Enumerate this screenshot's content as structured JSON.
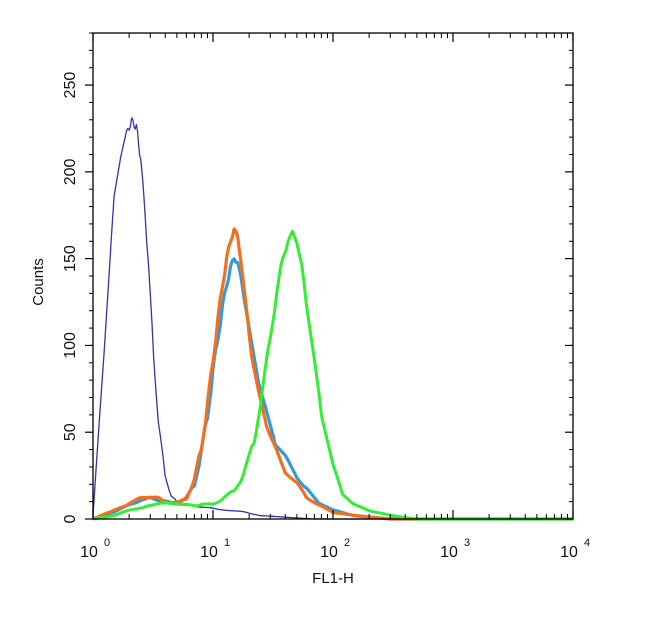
{
  "chart_data": {
    "type": "line",
    "title": "",
    "xlabel": "FL1-H",
    "ylabel": "Counts",
    "x_scale": "log",
    "xlim": [
      1,
      10000
    ],
    "ylim": [
      0,
      280
    ],
    "x_ticks": [
      {
        "value": 1,
        "base": "10",
        "exp": "0"
      },
      {
        "value": 10,
        "base": "10",
        "exp": "1"
      },
      {
        "value": 100,
        "base": "10",
        "exp": "2"
      },
      {
        "value": 1000,
        "base": "10",
        "exp": "3"
      },
      {
        "value": 10000,
        "base": "10",
        "exp": "4"
      }
    ],
    "y_ticks": [
      {
        "value": 0,
        "label": "0"
      },
      {
        "value": 50,
        "label": "50"
      },
      {
        "value": 100,
        "label": "100"
      },
      {
        "value": 150,
        "label": "150"
      },
      {
        "value": 200,
        "label": "200"
      },
      {
        "value": 250,
        "label": "250"
      }
    ],
    "grid": false,
    "legend": "none",
    "series": [
      {
        "color": "#3333aa",
        "x": [
          1.0,
          1.1,
          1.3,
          1.5,
          1.7,
          1.9,
          2.0,
          2.1,
          2.2,
          2.3,
          2.4,
          2.5,
          2.7,
          2.9,
          3.2,
          3.5,
          4.0,
          4.5,
          5.0,
          5.5,
          6.5,
          8,
          10,
          14,
          18,
          25,
          40,
          70,
          200,
          10000
        ],
        "y": [
          2,
          45,
          120,
          185,
          210,
          222,
          226,
          229,
          228,
          225,
          218,
          205,
          180,
          145,
          95,
          55,
          25,
          13,
          10,
          9,
          8,
          7,
          6,
          5,
          4,
          2,
          1,
          0,
          0,
          0
        ]
      },
      {
        "color": "#3399dd",
        "x": [
          1.0,
          1.5,
          2.0,
          2.5,
          3.0,
          3.5,
          4.0,
          5.0,
          6.0,
          7.0,
          8.0,
          9.0,
          10.0,
          11.0,
          12.0,
          13.0,
          14.0,
          15.0,
          16.0,
          17.0,
          19.0,
          21.0,
          24.0,
          28.0,
          33.0,
          40.0,
          50.0,
          60.0,
          75.0,
          100,
          150,
          300,
          10000
        ],
        "y": [
          0,
          4,
          8,
          11,
          12,
          11,
          10,
          9,
          12,
          20,
          38,
          60,
          85,
          105,
          122,
          135,
          145,
          150,
          148,
          140,
          120,
          100,
          80,
          60,
          45,
          35,
          25,
          17,
          10,
          5,
          2,
          0,
          0
        ]
      },
      {
        "color": "#f07020",
        "x": [
          1.0,
          1.5,
          2.0,
          2.5,
          3.0,
          3.5,
          4.0,
          5.0,
          6.0,
          7.0,
          8.0,
          9.0,
          10.0,
          11.0,
          12.0,
          13.0,
          14.0,
          15.0,
          16.0,
          17.0,
          19.0,
          21.0,
          24.0,
          28.0,
          33.0,
          40.0,
          50.0,
          60.0,
          75.0,
          100,
          150,
          300,
          10000
        ],
        "y": [
          0,
          5,
          9,
          12,
          13,
          12,
          10,
          9,
          12,
          22,
          42,
          65,
          92,
          115,
          135,
          150,
          160,
          167,
          163,
          150,
          120,
          95,
          72,
          55,
          40,
          28,
          20,
          13,
          8,
          4,
          2,
          0,
          0
        ]
      },
      {
        "color": "#33ee33",
        "x": [
          1.0,
          1.5,
          2.0,
          3.0,
          4.0,
          5.0,
          6.0,
          7.0,
          8.0,
          10,
          12,
          15,
          18,
          22,
          26,
          30,
          34,
          38,
          42,
          46,
          50,
          55,
          60,
          70,
          80,
          100,
          120,
          150,
          200,
          300,
          500,
          10000
        ],
        "y": [
          0,
          2,
          5,
          8,
          9,
          9,
          8,
          8,
          8,
          9,
          11,
          17,
          25,
          45,
          75,
          105,
          130,
          150,
          160,
          165,
          160,
          145,
          125,
          90,
          62,
          30,
          15,
          8,
          5,
          2,
          0,
          0
        ]
      }
    ]
  }
}
